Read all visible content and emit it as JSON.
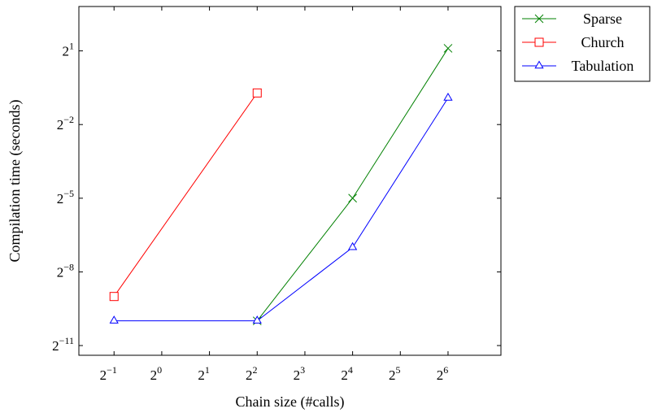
{
  "chart_data": {
    "type": "line",
    "title": "",
    "xlabel": "Chain size (#calls)",
    "ylabel": "Compilation time (seconds)",
    "x_scale": "log2",
    "y_scale": "log2",
    "x_ticks": [
      {
        "base": "2",
        "exp": "−1",
        "value": 0.5
      },
      {
        "base": "2",
        "exp": "0",
        "value": 1
      },
      {
        "base": "2",
        "exp": "1",
        "value": 2
      },
      {
        "base": "2",
        "exp": "2",
        "value": 4
      },
      {
        "base": "2",
        "exp": "3",
        "value": 8
      },
      {
        "base": "2",
        "exp": "4",
        "value": 16
      },
      {
        "base": "2",
        "exp": "5",
        "value": 32
      },
      {
        "base": "2",
        "exp": "6",
        "value": 64
      }
    ],
    "y_ticks": [
      {
        "base": "2",
        "exp": "−11",
        "value": 0.00048828125
      },
      {
        "base": "2",
        "exp": "−8",
        "value": 0.00390625
      },
      {
        "base": "2",
        "exp": "−5",
        "value": 0.03125
      },
      {
        "base": "2",
        "exp": "−2",
        "value": 0.25
      },
      {
        "base": "2",
        "exp": "1",
        "value": 2
      }
    ],
    "xlim": [
      0.3,
      138
    ],
    "ylim": [
      0.000371,
      7.0
    ],
    "grid": false,
    "legend_position": "outside-top-right",
    "series": [
      {
        "name": "Sparse",
        "color": "#008000",
        "marker": "x",
        "x": [
          4,
          16,
          64
        ],
        "y": [
          0.00098,
          0.0313,
          2.15
        ]
      },
      {
        "name": "Church",
        "color": "#ff0000",
        "marker": "square",
        "x": [
          0.5,
          4
        ],
        "y": [
          0.00195,
          0.61
        ]
      },
      {
        "name": "Tabulation",
        "color": "#0000ff",
        "marker": "triangle",
        "x": [
          0.5,
          4,
          16,
          64
        ],
        "y": [
          0.00098,
          0.00098,
          0.0078,
          0.53
        ]
      }
    ]
  }
}
